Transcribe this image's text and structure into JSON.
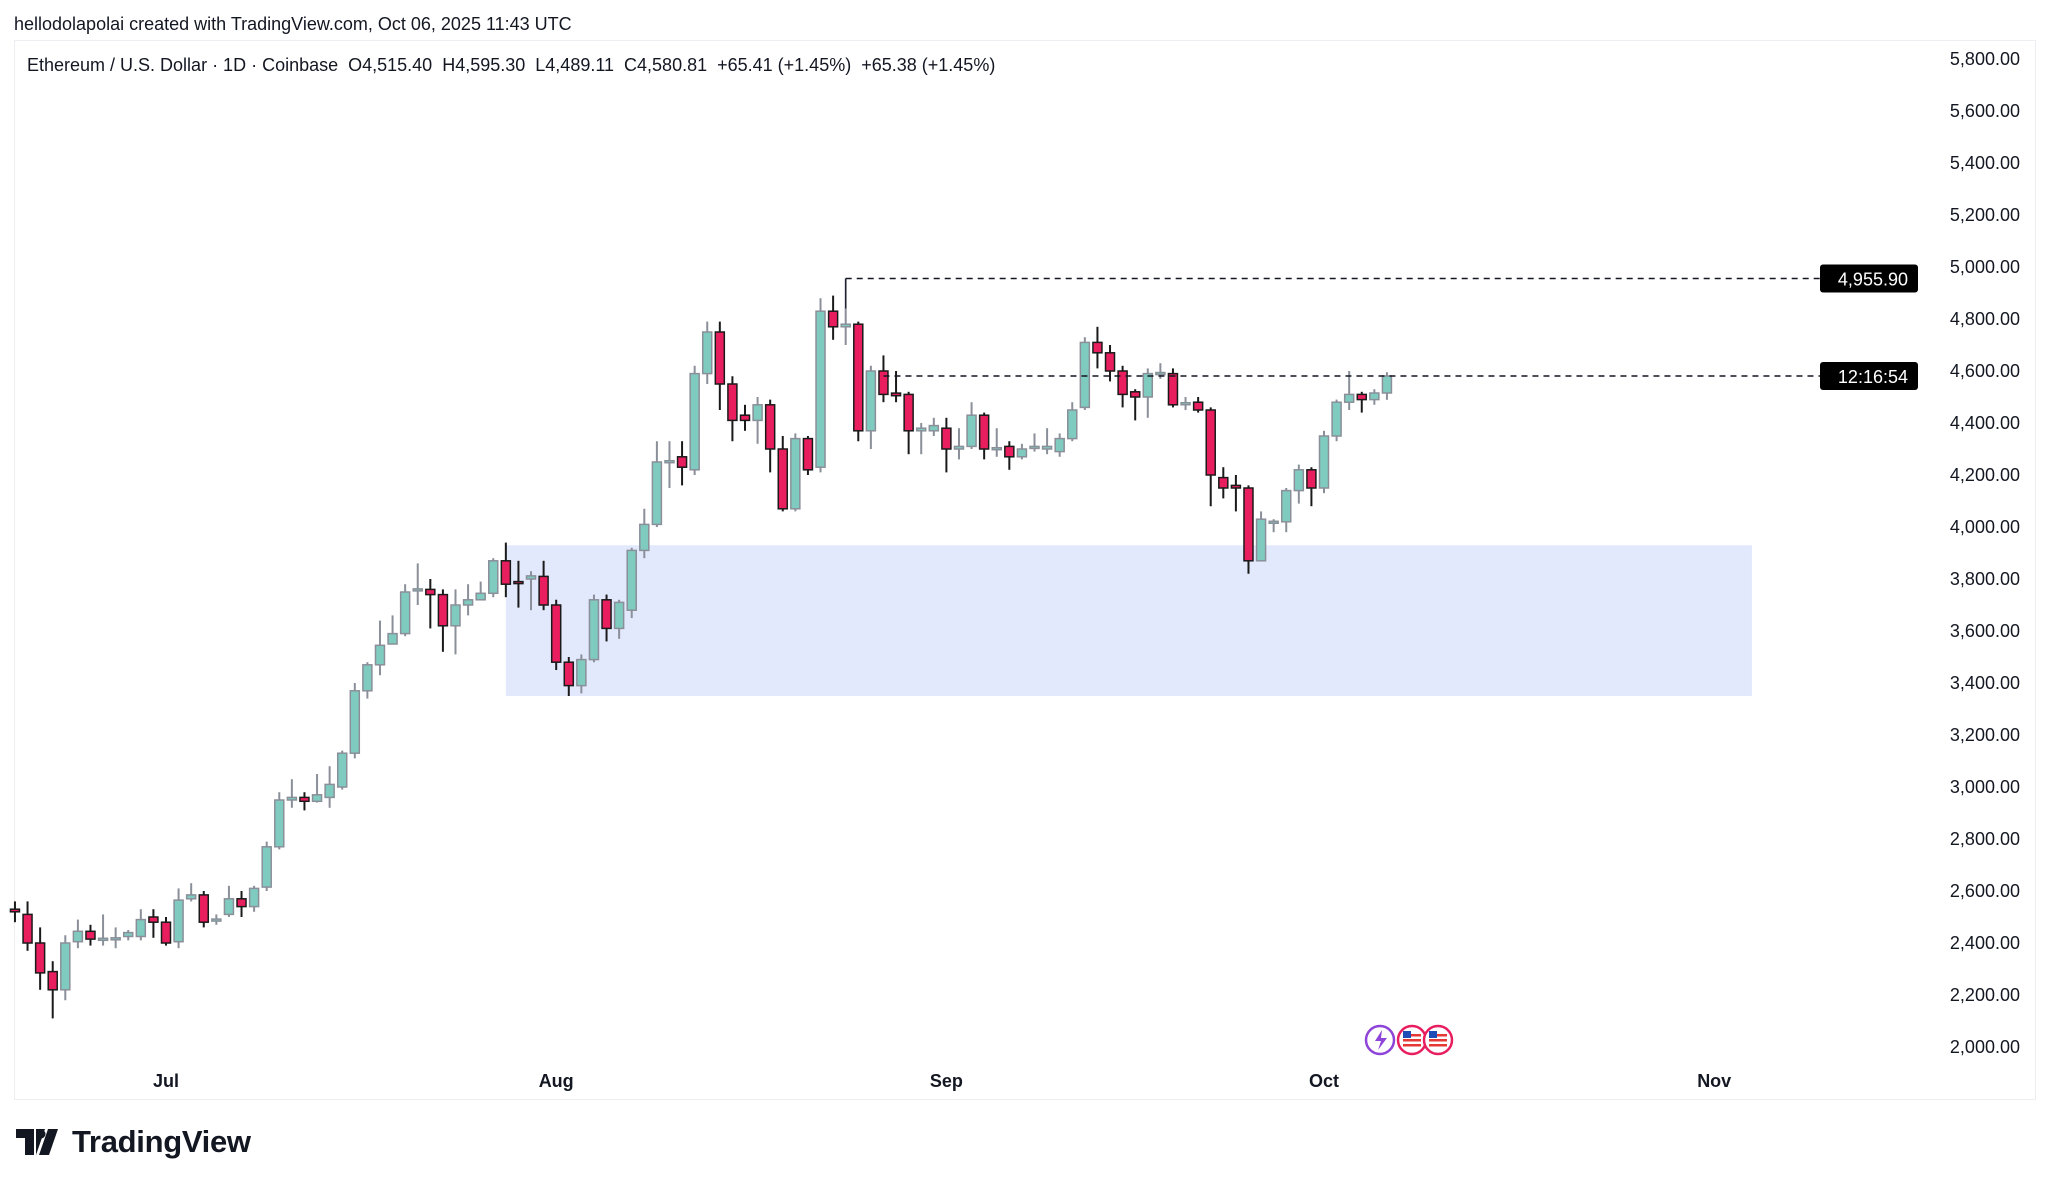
{
  "credit": "hellodolapolai created with TradingView.com, Oct 06, 2025 11:43 UTC",
  "legend": {
    "symbol": "Ethereum / U.S. Dollar · 1D · Coinbase",
    "open": "O4,515.40",
    "high": "H4,595.30",
    "low": "L4,489.11",
    "close": "C4,580.81",
    "change": "+65.41 (+1.45%)",
    "change2": "+65.38 (+1.45%)"
  },
  "footer": {
    "brand": "TradingView"
  },
  "colors": {
    "up": "#80cbc0",
    "up_border": "#8a8f99",
    "down": "#e91e5f",
    "down_border": "#1a1a1a",
    "zone": "#e3e9fc",
    "label_bg": "#000000"
  },
  "chart_data": {
    "type": "candlestick",
    "title": "",
    "ylim": [
      2000,
      5800
    ],
    "y_ticks": [
      "2,000.00",
      "2,200.00",
      "2,400.00",
      "2,600.00",
      "2,800.00",
      "3,000.00",
      "3,200.00",
      "3,400.00",
      "3,600.00",
      "3,800.00",
      "4,000.00",
      "4,200.00",
      "4,400.00",
      "4,600.00",
      "4,800.00",
      "5,000.00",
      "5,200.00",
      "5,400.00",
      "5,600.00",
      "5,800.00"
    ],
    "x_ticks": [
      {
        "label": "Jul",
        "date": "2025-07-01"
      },
      {
        "label": "Aug",
        "date": "2025-08-01"
      },
      {
        "label": "Sep",
        "date": "2025-09-01"
      },
      {
        "label": "Oct",
        "date": "2025-10-01"
      },
      {
        "label": "Nov",
        "date": "2025-11-01"
      }
    ],
    "x_range": [
      "2025-06-18",
      "2025-12-06"
    ],
    "grid": false,
    "ath_line": {
      "value": 4955.9,
      "label": "4,955.90",
      "from": "2025-08-24"
    },
    "price_line": {
      "value": 4580.81,
      "label": "12:16:54",
      "from": "2025-08-27"
    },
    "zone": {
      "from": "2025-07-28",
      "to": "2025-11-04",
      "low": 3350,
      "high": 3930
    },
    "candles": [
      [
        "2025-06-19",
        2530,
        2560,
        2480,
        2520
      ],
      [
        "2025-06-20",
        2510,
        2560,
        2370,
        2400
      ],
      [
        "2025-06-21",
        2400,
        2460,
        2220,
        2285
      ],
      [
        "2025-06-22",
        2290,
        2330,
        2110,
        2220
      ],
      [
        "2025-06-23",
        2220,
        2430,
        2180,
        2400
      ],
      [
        "2025-06-24",
        2405,
        2490,
        2380,
        2445
      ],
      [
        "2025-06-25",
        2445,
        2470,
        2390,
        2415
      ],
      [
        "2025-06-26",
        2415,
        2510,
        2390,
        2418
      ],
      [
        "2025-06-27",
        2420,
        2460,
        2380,
        2420
      ],
      [
        "2025-06-28",
        2425,
        2450,
        2410,
        2440
      ],
      [
        "2025-06-29",
        2425,
        2530,
        2410,
        2490
      ],
      [
        "2025-06-30",
        2500,
        2530,
        2420,
        2480
      ],
      [
        "2025-07-01",
        2480,
        2500,
        2390,
        2400
      ],
      [
        "2025-07-02",
        2405,
        2610,
        2380,
        2565
      ],
      [
        "2025-07-03",
        2570,
        2630,
        2560,
        2585
      ],
      [
        "2025-07-04",
        2585,
        2600,
        2460,
        2480
      ],
      [
        "2025-07-05",
        2490,
        2510,
        2470,
        2492
      ],
      [
        "2025-07-06",
        2510,
        2620,
        2500,
        2570
      ],
      [
        "2025-07-07",
        2570,
        2600,
        2500,
        2540
      ],
      [
        "2025-07-08",
        2540,
        2620,
        2520,
        2610
      ],
      [
        "2025-07-09",
        2615,
        2790,
        2600,
        2770
      ],
      [
        "2025-07-10",
        2770,
        2980,
        2760,
        2950
      ],
      [
        "2025-07-11",
        2950,
        3030,
        2920,
        2960
      ],
      [
        "2025-07-12",
        2960,
        2980,
        2910,
        2945
      ],
      [
        "2025-07-13",
        2945,
        3050,
        2940,
        2970
      ],
      [
        "2025-07-14",
        2960,
        3080,
        2920,
        3010
      ],
      [
        "2025-07-15",
        3000,
        3140,
        2990,
        3130
      ],
      [
        "2025-07-16",
        3130,
        3400,
        3110,
        3370
      ],
      [
        "2025-07-17",
        3370,
        3480,
        3340,
        3470
      ],
      [
        "2025-07-18",
        3470,
        3640,
        3430,
        3545
      ],
      [
        "2025-07-19",
        3550,
        3660,
        3550,
        3590
      ],
      [
        "2025-07-20",
        3590,
        3780,
        3580,
        3750
      ],
      [
        "2025-07-21",
        3758,
        3860,
        3700,
        3762
      ],
      [
        "2025-07-22",
        3760,
        3800,
        3610,
        3740
      ],
      [
        "2025-07-23",
        3740,
        3760,
        3520,
        3620
      ],
      [
        "2025-07-24",
        3620,
        3760,
        3510,
        3700
      ],
      [
        "2025-07-25",
        3700,
        3780,
        3660,
        3720
      ],
      [
        "2025-07-26",
        3720,
        3790,
        3720,
        3745
      ],
      [
        "2025-07-27",
        3745,
        3880,
        3730,
        3870
      ],
      [
        "2025-07-28",
        3870,
        3940,
        3730,
        3780
      ],
      [
        "2025-07-29",
        3790,
        3870,
        3690,
        3788
      ],
      [
        "2025-07-30",
        3800,
        3830,
        3680,
        3812
      ],
      [
        "2025-07-31",
        3810,
        3870,
        3680,
        3700
      ],
      [
        "2025-08-01",
        3700,
        3720,
        3450,
        3480
      ],
      [
        "2025-08-02",
        3480,
        3500,
        3350,
        3390
      ],
      [
        "2025-08-03",
        3390,
        3510,
        3360,
        3490
      ],
      [
        "2025-08-04",
        3490,
        3740,
        3480,
        3720
      ],
      [
        "2025-08-05",
        3720,
        3740,
        3560,
        3610
      ],
      [
        "2025-08-06",
        3610,
        3720,
        3570,
        3710
      ],
      [
        "2025-08-07",
        3680,
        3920,
        3650,
        3910
      ],
      [
        "2025-08-08",
        3910,
        4070,
        3880,
        4010
      ],
      [
        "2025-08-09",
        4010,
        4330,
        4000,
        4250
      ],
      [
        "2025-08-10",
        4250,
        4330,
        4150,
        4255
      ],
      [
        "2025-08-11",
        4270,
        4330,
        4160,
        4230
      ],
      [
        "2025-08-12",
        4220,
        4620,
        4200,
        4590
      ],
      [
        "2025-08-13",
        4590,
        4790,
        4550,
        4750
      ],
      [
        "2025-08-14",
        4750,
        4790,
        4450,
        4550
      ],
      [
        "2025-08-15",
        4550,
        4580,
        4330,
        4410
      ],
      [
        "2025-08-16",
        4430,
        4470,
        4370,
        4410
      ],
      [
        "2025-08-17",
        4410,
        4500,
        4320,
        4470
      ],
      [
        "2025-08-18",
        4470,
        4490,
        4210,
        4300
      ],
      [
        "2025-08-19",
        4300,
        4350,
        4060,
        4070
      ],
      [
        "2025-08-20",
        4070,
        4360,
        4060,
        4340
      ],
      [
        "2025-08-21",
        4340,
        4350,
        4200,
        4220
      ],
      [
        "2025-08-22",
        4230,
        4880,
        4210,
        4830
      ],
      [
        "2025-08-23",
        4830,
        4890,
        4720,
        4770
      ],
      [
        "2025-08-24",
        4770,
        4955.9,
        4700,
        4780
      ],
      [
        "2025-08-25",
        4780,
        4790,
        4330,
        4370
      ],
      [
        "2025-08-26",
        4370,
        4620,
        4300,
        4600
      ],
      [
        "2025-08-27",
        4600,
        4660,
        4480,
        4510
      ],
      [
        "2025-08-28",
        4515,
        4600,
        4480,
        4505
      ],
      [
        "2025-08-29",
        4510,
        4520,
        4280,
        4370
      ],
      [
        "2025-08-30",
        4370,
        4400,
        4280,
        4380
      ],
      [
        "2025-08-31",
        4370,
        4420,
        4350,
        4390
      ],
      [
        "2025-09-01",
        4380,
        4420,
        4210,
        4300
      ],
      [
        "2025-09-02",
        4300,
        4380,
        4260,
        4310
      ],
      [
        "2025-09-03",
        4310,
        4480,
        4300,
        4430
      ],
      [
        "2025-09-04",
        4430,
        4440,
        4260,
        4300
      ],
      [
        "2025-09-05",
        4300,
        4380,
        4270,
        4305
      ],
      [
        "2025-09-06",
        4310,
        4330,
        4220,
        4270
      ],
      [
        "2025-09-07",
        4270,
        4320,
        4260,
        4300
      ],
      [
        "2025-09-08",
        4305,
        4360,
        4290,
        4310
      ],
      [
        "2025-09-09",
        4300,
        4380,
        4280,
        4310
      ],
      [
        "2025-09-10",
        4290,
        4360,
        4270,
        4340
      ],
      [
        "2025-09-11",
        4340,
        4480,
        4330,
        4450
      ],
      [
        "2025-09-12",
        4460,
        4730,
        4450,
        4710
      ],
      [
        "2025-09-13",
        4710,
        4770,
        4610,
        4670
      ],
      [
        "2025-09-14",
        4670,
        4700,
        4560,
        4600
      ],
      [
        "2025-09-15",
        4600,
        4620,
        4460,
        4510
      ],
      [
        "2025-09-16",
        4520,
        4530,
        4410,
        4500
      ],
      [
        "2025-09-17",
        4500,
        4610,
        4420,
        4590
      ],
      [
        "2025-09-18",
        4590,
        4630,
        4570,
        4594
      ],
      [
        "2025-09-19",
        4590,
        4610,
        4460,
        4470
      ],
      [
        "2025-09-20",
        4475,
        4500,
        4450,
        4478
      ],
      [
        "2025-09-21",
        4480,
        4500,
        4440,
        4450
      ],
      [
        "2025-09-22",
        4450,
        4460,
        4080,
        4200
      ],
      [
        "2025-09-23",
        4190,
        4230,
        4110,
        4150
      ],
      [
        "2025-09-24",
        4160,
        4200,
        4060,
        4150
      ],
      [
        "2025-09-25",
        4150,
        4160,
        3820,
        3870
      ],
      [
        "2025-09-26",
        3870,
        4060,
        3870,
        4030
      ],
      [
        "2025-09-27",
        4020,
        4030,
        3980,
        4022
      ],
      [
        "2025-09-28",
        4020,
        4150,
        3980,
        4140
      ],
      [
        "2025-09-29",
        4140,
        4240,
        4090,
        4220
      ],
      [
        "2025-09-30",
        4220,
        4230,
        4080,
        4150
      ],
      [
        "2025-10-01",
        4150,
        4370,
        4130,
        4350
      ],
      [
        "2025-10-02",
        4350,
        4490,
        4330,
        4480
      ],
      [
        "2025-10-03",
        4480,
        4600,
        4450,
        4510
      ],
      [
        "2025-10-04",
        4510,
        4520,
        4440,
        4490
      ],
      [
        "2025-10-05",
        4490,
        4530,
        4470,
        4515.4
      ],
      [
        "2025-10-06",
        4515.4,
        4595.3,
        4489.11,
        4580.81
      ]
    ]
  }
}
